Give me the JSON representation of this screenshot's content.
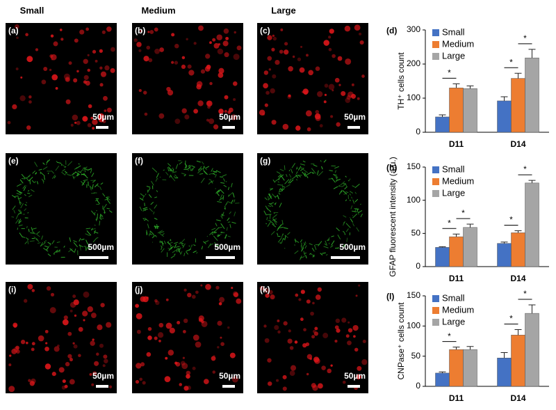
{
  "column_headers": [
    "Small",
    "Medium",
    "Large"
  ],
  "panels": [
    {
      "label": "(a)",
      "scale": "50µm",
      "color": "#e0161a"
    },
    {
      "label": "(b)",
      "scale": "50µm",
      "color": "#e0161a"
    },
    {
      "label": "(c)",
      "scale": "50µm",
      "color": "#e0161a"
    },
    {
      "label": "(e)",
      "scale": "500µm",
      "color": "#2fb02a"
    },
    {
      "label": "(f)",
      "scale": "500µm",
      "color": "#2fb02a"
    },
    {
      "label": "(g)",
      "scale": "500µm",
      "color": "#2fb02a"
    },
    {
      "label": "(i)",
      "scale": "50µm",
      "color": "#e0161a"
    },
    {
      "label": "(j)",
      "scale": "50µm",
      "color": "#e0161a"
    },
    {
      "label": "(k)",
      "scale": "50µm",
      "color": "#e0161a"
    }
  ],
  "chart_data": [
    {
      "type": "bar",
      "panel_label": "(d)",
      "y_label": "TH⁺ cells count",
      "categories": [
        "D11",
        "D14"
      ],
      "series": [
        {
          "name": "Small",
          "color": "#4472c4",
          "values": [
            45,
            92
          ],
          "errors": [
            6,
            12
          ]
        },
        {
          "name": "Medium",
          "color": "#ed7d31",
          "values": [
            130,
            158
          ],
          "errors": [
            12,
            15
          ]
        },
        {
          "name": "Large",
          "color": "#a5a5a5",
          "values": [
            128,
            218
          ],
          "errors": [
            8,
            25
          ]
        }
      ],
      "ylim": [
        0,
        300
      ],
      "yticks": [
        0,
        100,
        200,
        300
      ],
      "annotations": [
        "*",
        "*",
        "*"
      ]
    },
    {
      "type": "bar",
      "panel_label": "(h)",
      "y_label": "GFAP fluorescent intensity (a.u.)",
      "categories": [
        "D11",
        "D14"
      ],
      "series": [
        {
          "name": "Small",
          "color": "#4472c4",
          "values": [
            29,
            35
          ],
          "errors": [
            1,
            2
          ]
        },
        {
          "name": "Medium",
          "color": "#ed7d31",
          "values": [
            45,
            51
          ],
          "errors": [
            4,
            3
          ]
        },
        {
          "name": "Large",
          "color": "#a5a5a5",
          "values": [
            59,
            126
          ],
          "errors": [
            5,
            4
          ]
        }
      ],
      "ylim": [
        0,
        150
      ],
      "yticks": [
        0,
        50,
        100,
        150
      ],
      "annotations": [
        "*",
        "*",
        "*",
        "*"
      ]
    },
    {
      "type": "bar",
      "panel_label": "(l)",
      "y_label": "CNPase⁺ cells count",
      "categories": [
        "D11",
        "D14"
      ],
      "series": [
        {
          "name": "Small",
          "color": "#4472c4",
          "values": [
            22,
            47
          ],
          "errors": [
            2,
            9
          ]
        },
        {
          "name": "Medium",
          "color": "#ed7d31",
          "values": [
            61,
            85
          ],
          "errors": [
            4,
            9
          ]
        },
        {
          "name": "Large",
          "color": "#a5a5a5",
          "values": [
            61,
            121
          ],
          "errors": [
            5,
            14
          ]
        }
      ],
      "ylim": [
        0,
        150
      ],
      "yticks": [
        0,
        50,
        100,
        150
      ],
      "annotations": [
        "*",
        "*",
        "*"
      ]
    }
  ]
}
